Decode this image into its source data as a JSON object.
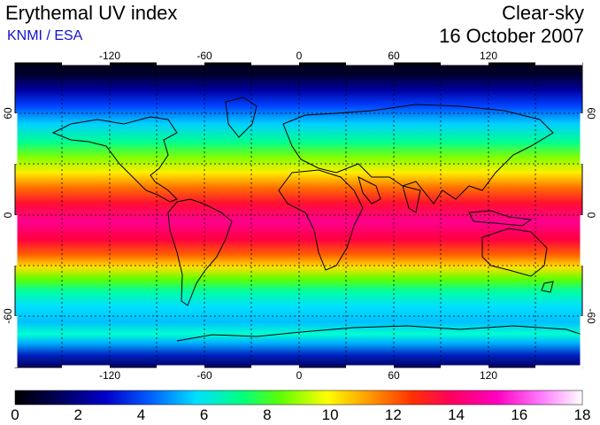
{
  "header": {
    "title": "Erythemal UV index",
    "subtitle": "KNMI / ESA",
    "sky_condition": "Clear-sky",
    "date": "16 October 2007"
  },
  "map": {
    "longitude_ticks": [
      "-120",
      "-60",
      "0",
      "60",
      "120"
    ],
    "latitude_ticks_left": [
      "60",
      "0",
      "-60"
    ],
    "latitude_ticks_right": [
      "60",
      "0",
      "-60"
    ],
    "gridline_style": "dotted",
    "extent": {
      "lon": [
        -180,
        180
      ],
      "lat": [
        -90,
        90
      ]
    }
  },
  "colorbar": {
    "ticks": [
      "0",
      "2",
      "4",
      "6",
      "8",
      "10",
      "12",
      "14",
      "16",
      "18"
    ],
    "range": [
      0,
      18
    ],
    "colors": [
      "#000000",
      "#000050",
      "#0000c8",
      "#0060ff",
      "#00e0ff",
      "#00ff80",
      "#60ff00",
      "#ffff00",
      "#ffa000",
      "#ff3000",
      "#ff0060",
      "#ff00c0",
      "#ff80ff",
      "#ffffff"
    ]
  }
}
